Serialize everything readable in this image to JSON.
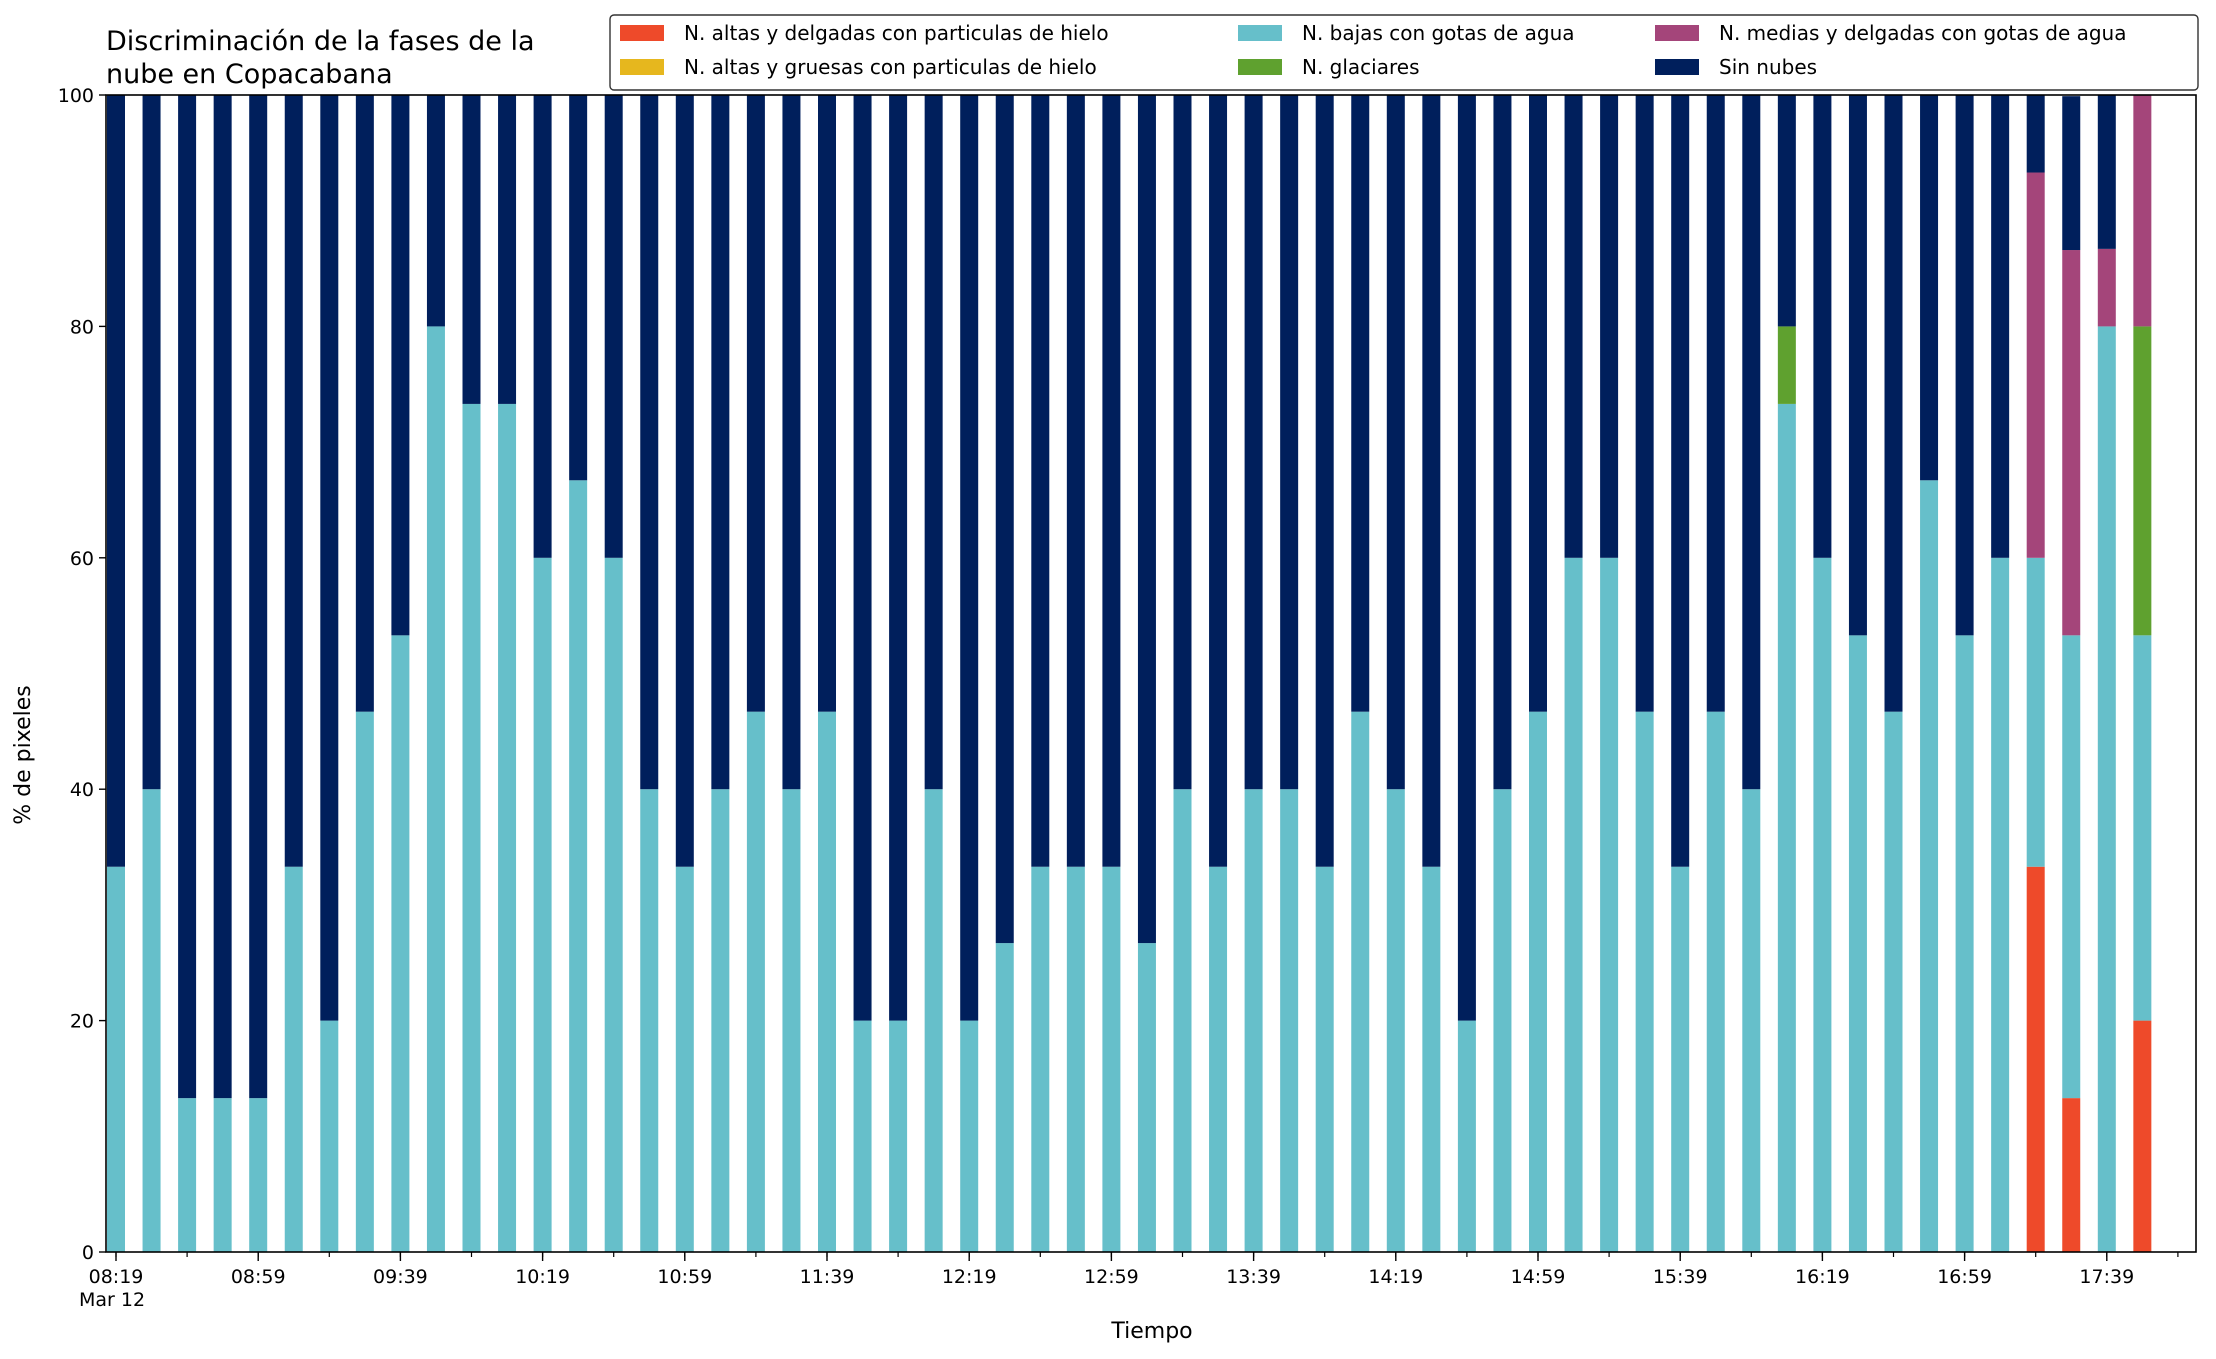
{
  "chart_data": {
    "type": "bar",
    "stacked": true,
    "title": "Discriminación de la fases de la\nnube en Copacabana",
    "xlabel": "Tiempo",
    "ylabel": "% de pixeles",
    "ylim": [
      0,
      100
    ],
    "yticks": [
      0,
      20,
      40,
      60,
      80,
      100
    ],
    "grid": false,
    "legend_position": "top-right",
    "xtick_labels": [
      {
        "label": "08:19",
        "sub": "Mar 12",
        "index": 0
      },
      {
        "label": "08:59",
        "index": 4
      },
      {
        "label": "09:39",
        "index": 8
      },
      {
        "label": "10:19",
        "index": 12
      },
      {
        "label": "10:59",
        "index": 16
      },
      {
        "label": "11:39",
        "index": 20
      },
      {
        "label": "12:19",
        "index": 24
      },
      {
        "label": "12:59",
        "index": 28
      },
      {
        "label": "13:39",
        "index": 32
      },
      {
        "label": "14:19",
        "index": 36
      },
      {
        "label": "14:59",
        "index": 40
      },
      {
        "label": "15:39",
        "index": 44
      },
      {
        "label": "16:19",
        "index": 48
      },
      {
        "label": "16:59",
        "index": 52
      },
      {
        "label": "17:39",
        "index": 56
      }
    ],
    "categories": [
      "08:19",
      "08:29",
      "08:39",
      "08:49",
      "08:59",
      "09:09",
      "09:19",
      "09:29",
      "09:39",
      "09:49",
      "09:59",
      "10:09",
      "10:19",
      "10:29",
      "10:39",
      "10:49",
      "10:59",
      "11:09",
      "11:19",
      "11:29",
      "11:39",
      "11:49",
      "11:59",
      "12:09",
      "12:19",
      "12:29",
      "12:39",
      "12:49",
      "12:59",
      "13:09",
      "13:19",
      "13:29",
      "13:39",
      "13:49",
      "13:59",
      "14:09",
      "14:19",
      "14:29",
      "14:39",
      "14:49",
      "14:59",
      "15:09",
      "15:19",
      "15:29",
      "15:39",
      "15:49",
      "15:59",
      "16:09",
      "16:19",
      "16:29",
      "16:39",
      "16:49",
      "16:59",
      "17:09",
      "17:19",
      "17:29",
      "17:39",
      "17:49"
    ],
    "series": [
      {
        "name": "N. altas y delgadas con particulas de hielo",
        "color": "#ee4a2a",
        "values": [
          0,
          0,
          0,
          0,
          0,
          0,
          0,
          0,
          0,
          0,
          0,
          0,
          0,
          0,
          0,
          0,
          0,
          0,
          0,
          0,
          0,
          0,
          0,
          0,
          0,
          0,
          0,
          0,
          0,
          0,
          0,
          0,
          0,
          0,
          0,
          0,
          0,
          0,
          0,
          0,
          0,
          0,
          0,
          0,
          0,
          0,
          0,
          0,
          0,
          0,
          0,
          0,
          0,
          0,
          33.3,
          13.3,
          0,
          20
        ]
      },
      {
        "name": "N. altas y gruesas con particulas de hielo",
        "color": "#e6b71e",
        "values": [
          0,
          0,
          0,
          0,
          0,
          0,
          0,
          0,
          0,
          0,
          0,
          0,
          0,
          0,
          0,
          0,
          0,
          0,
          0,
          0,
          0,
          0,
          0,
          0,
          0,
          0,
          0,
          0,
          0,
          0,
          0,
          0,
          0,
          0,
          0,
          0,
          0,
          0,
          0,
          0,
          0,
          0,
          0,
          0,
          0,
          0,
          0,
          0,
          0,
          0,
          0,
          0,
          0,
          0,
          0,
          0,
          0,
          0
        ]
      },
      {
        "name": "N. bajas con gotas de agua",
        "color": "#66bfca",
        "values": [
          33.3,
          40,
          13.3,
          13.3,
          13.3,
          33.3,
          20,
          46.7,
          53.3,
          80,
          73.3,
          73.3,
          60,
          66.7,
          60,
          40,
          33.3,
          40,
          46.7,
          40,
          46.7,
          20,
          20,
          40,
          20,
          26.7,
          33.3,
          33.3,
          33.3,
          26.7,
          40,
          33.3,
          40,
          40,
          33.3,
          46.7,
          40,
          33.3,
          20,
          40,
          46.7,
          60,
          60,
          46.7,
          33.3,
          46.7,
          40,
          73.3,
          60,
          53.3,
          46.7,
          66.7,
          53.3,
          60,
          26.7,
          40,
          80,
          33.3
        ]
      },
      {
        "name": "N. glaciares",
        "color": "#5fa12f",
        "values": [
          0,
          0,
          0,
          0,
          0,
          0,
          0,
          0,
          0,
          0,
          0,
          0,
          0,
          0,
          0,
          0,
          0,
          0,
          0,
          0,
          0,
          0,
          0,
          0,
          0,
          0,
          0,
          0,
          0,
          0,
          0,
          0,
          0,
          0,
          0,
          0,
          0,
          0,
          0,
          0,
          0,
          0,
          0,
          0,
          0,
          0,
          0,
          6.7,
          0,
          0,
          0,
          0,
          0,
          0,
          0,
          0,
          0,
          26.7
        ]
      },
      {
        "name": "N. medias y delgadas con gotas de agua",
        "color": "#a4457a",
        "values": [
          0,
          0,
          0,
          0,
          0,
          0,
          0,
          0,
          0,
          0,
          0,
          0,
          0,
          0,
          0,
          0,
          0,
          0,
          0,
          0,
          0,
          0,
          0,
          0,
          0,
          0,
          0,
          0,
          0,
          0,
          0,
          0,
          0,
          0,
          0,
          0,
          0,
          0,
          0,
          0,
          0,
          0,
          0,
          0,
          0,
          0,
          0,
          0,
          0,
          0,
          0,
          0,
          0,
          0,
          33.3,
          33.3,
          6.7,
          20
        ]
      },
      {
        "name": "Sin nubes",
        "color": "#001f5c",
        "values": [
          66.7,
          60,
          86.7,
          86.7,
          86.7,
          66.7,
          80,
          53.3,
          46.7,
          20,
          26.7,
          26.7,
          40,
          33.3,
          40,
          60,
          66.7,
          60,
          53.3,
          60,
          53.3,
          80,
          80,
          60,
          80,
          73.3,
          66.7,
          66.7,
          66.7,
          73.3,
          60,
          66.7,
          60,
          60,
          66.7,
          53.3,
          60,
          66.7,
          80,
          60,
          53.3,
          40,
          40,
          53.3,
          66.7,
          53.3,
          60,
          20,
          40,
          46.7,
          53.3,
          33.3,
          46.7,
          40,
          6.7,
          13.3,
          13.3,
          0
        ]
      }
    ]
  }
}
